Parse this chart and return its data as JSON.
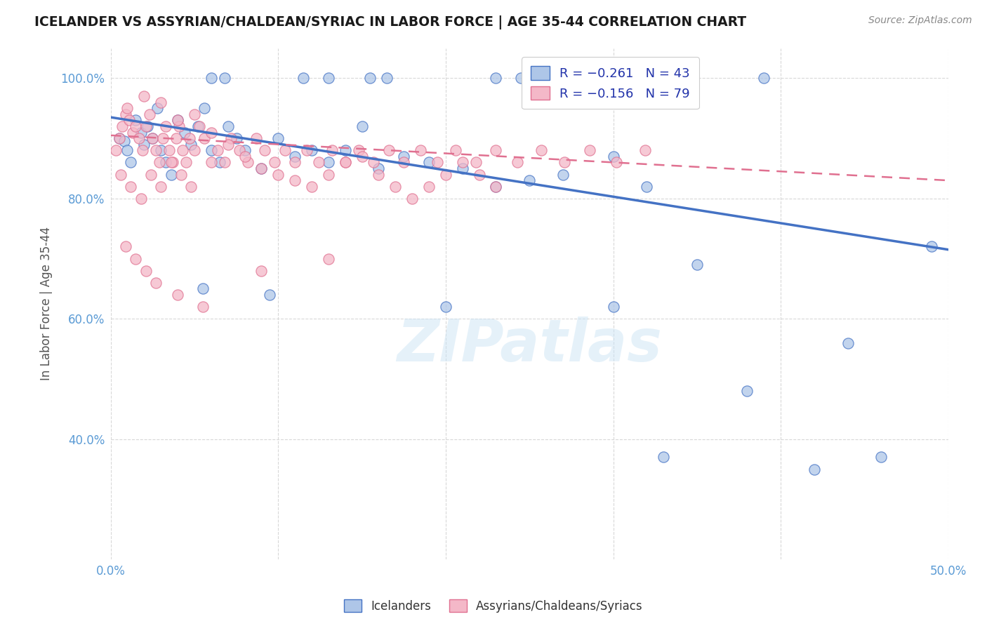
{
  "title": "ICELANDER VS ASSYRIAN/CHALDEAN/SYRIAC IN LABOR FORCE | AGE 35-44 CORRELATION CHART",
  "source": "Source: ZipAtlas.com",
  "ylabel": "In Labor Force | Age 35-44",
  "xlim": [
    0.0,
    0.5
  ],
  "ylim": [
    0.2,
    1.05
  ],
  "xticks": [
    0.0,
    0.1,
    0.2,
    0.3,
    0.4,
    0.5
  ],
  "xticklabels": [
    "0.0%",
    "",
    "",
    "",
    "",
    "50.0%"
  ],
  "yticks": [
    0.4,
    0.6,
    0.8,
    1.0
  ],
  "yticklabels": [
    "40.0%",
    "60.0%",
    "80.0%",
    "100.0%"
  ],
  "blue_scatter_x": [
    0.005,
    0.008,
    0.01,
    0.012,
    0.015,
    0.018,
    0.02,
    0.022,
    0.025,
    0.028,
    0.03,
    0.033,
    0.036,
    0.04,
    0.044,
    0.048,
    0.052,
    0.056,
    0.06,
    0.065,
    0.07,
    0.075,
    0.08,
    0.09,
    0.1,
    0.11,
    0.12,
    0.13,
    0.14,
    0.15,
    0.16,
    0.175,
    0.19,
    0.21,
    0.23,
    0.25,
    0.27,
    0.3,
    0.32,
    0.35,
    0.38,
    0.42,
    0.49
  ],
  "blue_scatter_y": [
    0.9,
    0.895,
    0.88,
    0.86,
    0.93,
    0.91,
    0.89,
    0.92,
    0.9,
    0.95,
    0.88,
    0.86,
    0.84,
    0.93,
    0.91,
    0.89,
    0.92,
    0.95,
    0.88,
    0.86,
    0.92,
    0.9,
    0.88,
    0.85,
    0.9,
    0.87,
    0.88,
    0.86,
    0.88,
    0.92,
    0.85,
    0.87,
    0.86,
    0.85,
    0.82,
    0.83,
    0.84,
    0.87,
    0.82,
    0.69,
    0.48,
    0.35,
    0.72
  ],
  "blue_scatter_top_x": [
    0.06,
    0.068,
    0.115,
    0.13,
    0.155,
    0.165,
    0.23,
    0.245,
    0.265,
    0.39
  ],
  "blue_scatter_top_y": [
    1.0,
    1.0,
    1.0,
    1.0,
    1.0,
    1.0,
    1.0,
    1.0,
    1.0,
    1.0
  ],
  "blue_scatter_low_x": [
    0.055,
    0.095,
    0.2,
    0.3,
    0.33,
    0.44,
    0.46
  ],
  "blue_scatter_low_y": [
    0.65,
    0.64,
    0.62,
    0.62,
    0.37,
    0.56,
    0.37
  ],
  "pink_scatter_x": [
    0.003,
    0.005,
    0.007,
    0.009,
    0.011,
    0.013,
    0.015,
    0.017,
    0.019,
    0.021,
    0.023,
    0.025,
    0.027,
    0.029,
    0.031,
    0.033,
    0.035,
    0.037,
    0.039,
    0.041,
    0.043,
    0.045,
    0.047,
    0.05,
    0.053,
    0.056,
    0.06,
    0.064,
    0.068,
    0.072,
    0.077,
    0.082,
    0.087,
    0.092,
    0.098,
    0.104,
    0.11,
    0.117,
    0.124,
    0.132,
    0.14,
    0.148,
    0.157,
    0.166,
    0.175,
    0.185,
    0.195,
    0.206,
    0.218,
    0.23,
    0.243,
    0.257,
    0.271,
    0.286,
    0.302,
    0.319,
    0.01,
    0.02,
    0.03,
    0.04,
    0.05,
    0.06,
    0.07,
    0.08,
    0.09,
    0.1,
    0.11,
    0.12,
    0.13,
    0.14,
    0.15,
    0.16,
    0.17,
    0.18,
    0.19,
    0.2,
    0.21,
    0.22,
    0.23
  ],
  "pink_scatter_y": [
    0.88,
    0.9,
    0.92,
    0.94,
    0.93,
    0.91,
    0.92,
    0.9,
    0.88,
    0.92,
    0.94,
    0.9,
    0.88,
    0.86,
    0.9,
    0.92,
    0.88,
    0.86,
    0.9,
    0.92,
    0.88,
    0.86,
    0.9,
    0.88,
    0.92,
    0.9,
    0.86,
    0.88,
    0.86,
    0.9,
    0.88,
    0.86,
    0.9,
    0.88,
    0.86,
    0.88,
    0.86,
    0.88,
    0.86,
    0.88,
    0.86,
    0.88,
    0.86,
    0.88,
    0.86,
    0.88,
    0.86,
    0.88,
    0.86,
    0.88,
    0.86,
    0.88,
    0.86,
    0.88,
    0.86,
    0.88,
    0.95,
    0.97,
    0.96,
    0.93,
    0.94,
    0.91,
    0.89,
    0.87,
    0.85,
    0.84,
    0.83,
    0.82,
    0.84,
    0.86,
    0.87,
    0.84,
    0.82,
    0.8,
    0.82,
    0.84,
    0.86,
    0.84,
    0.82
  ],
  "pink_scatter_extra_x": [
    0.006,
    0.012,
    0.018,
    0.024,
    0.03,
    0.036,
    0.042,
    0.048,
    0.009,
    0.015,
    0.021,
    0.027,
    0.04,
    0.055,
    0.09,
    0.13
  ],
  "pink_scatter_extra_y": [
    0.84,
    0.82,
    0.8,
    0.84,
    0.82,
    0.86,
    0.84,
    0.82,
    0.72,
    0.7,
    0.68,
    0.66,
    0.64,
    0.62,
    0.68,
    0.7
  ],
  "blue_line_x": [
    0.0,
    0.5
  ],
  "blue_line_y": [
    0.935,
    0.715
  ],
  "pink_line_x": [
    0.0,
    0.5
  ],
  "pink_line_y": [
    0.905,
    0.83
  ],
  "blue_color": "#4472c4",
  "pink_color": "#e07090",
  "blue_scatter_color": "#aec6e8",
  "pink_scatter_color": "#f4b8c8",
  "watermark_text": "ZIPatlas",
  "background_color": "#ffffff",
  "grid_color": "#d8d8d8"
}
